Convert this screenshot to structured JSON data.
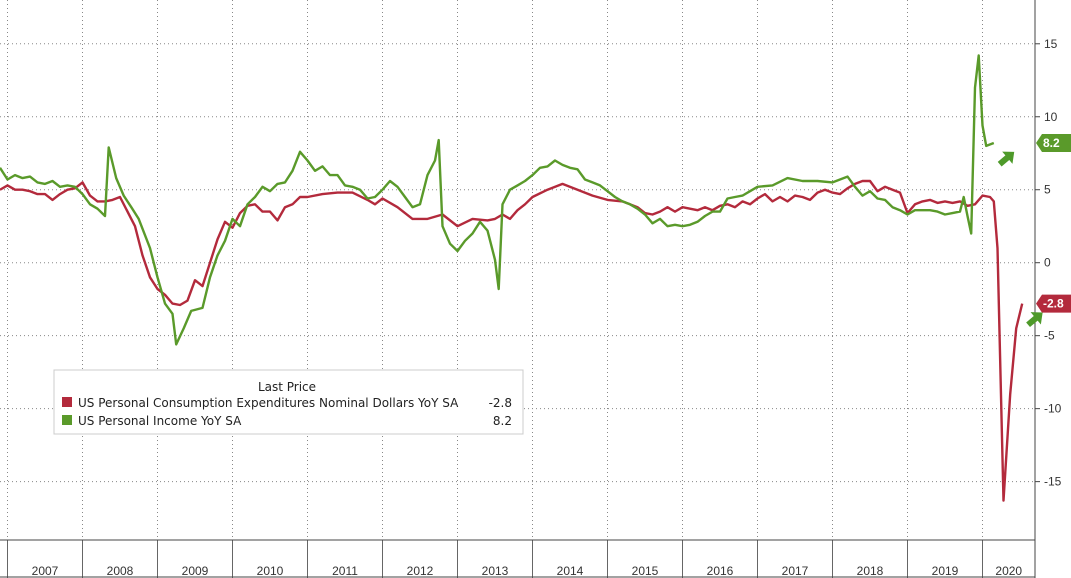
{
  "chart_data": {
    "type": "line",
    "x_range": [
      2006.9,
      2020.7
    ],
    "ylim": [
      -19,
      18
    ],
    "y_ticks": [
      15,
      10,
      5,
      0,
      -5,
      -10,
      -15
    ],
    "y_tick_labels": [
      "15",
      "10",
      "5",
      "0",
      "-5",
      "-10",
      "-15"
    ],
    "x_tick_labels": [
      "2007",
      "2008",
      "2009",
      "2010",
      "2011",
      "2012",
      "2013",
      "2014",
      "2015",
      "2016",
      "2017",
      "2018",
      "2019",
      "2020"
    ],
    "grid": true,
    "legend": {
      "title": "Last Price",
      "placement": "lower-left",
      "entries": [
        {
          "label": "US Personal Consumption Expenditures Nominal Dollars YoY SA",
          "value": "-2.8",
          "color": "#b32a3c"
        },
        {
          "label": "US Personal Income YoY SA",
          "value": "8.2",
          "color": "#5a9a2a"
        }
      ]
    },
    "series": [
      {
        "key": "pce",
        "color": "#b32a3c",
        "last_label": "-2.8",
        "points": [
          [
            2006.9,
            5.0
          ],
          [
            2007.0,
            5.3
          ],
          [
            2007.1,
            5.0
          ],
          [
            2007.2,
            5.0
          ],
          [
            2007.3,
            4.9
          ],
          [
            2007.4,
            4.7
          ],
          [
            2007.5,
            4.7
          ],
          [
            2007.6,
            4.3
          ],
          [
            2007.7,
            4.7
          ],
          [
            2007.8,
            5.0
          ],
          [
            2007.9,
            5.1
          ],
          [
            2008.0,
            5.5
          ],
          [
            2008.1,
            4.6
          ],
          [
            2008.2,
            4.2
          ],
          [
            2008.3,
            4.2
          ],
          [
            2008.4,
            4.3
          ],
          [
            2008.5,
            4.5
          ],
          [
            2008.6,
            3.5
          ],
          [
            2008.7,
            2.5
          ],
          [
            2008.8,
            0.5
          ],
          [
            2008.9,
            -1.0
          ],
          [
            2009.0,
            -1.8
          ],
          [
            2009.1,
            -2.2
          ],
          [
            2009.2,
            -2.8
          ],
          [
            2009.3,
            -2.9
          ],
          [
            2009.4,
            -2.6
          ],
          [
            2009.5,
            -1.2
          ],
          [
            2009.6,
            -1.6
          ],
          [
            2009.7,
            0.0
          ],
          [
            2009.8,
            1.6
          ],
          [
            2009.9,
            2.8
          ],
          [
            2010.0,
            2.4
          ],
          [
            2010.1,
            3.4
          ],
          [
            2010.2,
            3.9
          ],
          [
            2010.3,
            4.0
          ],
          [
            2010.4,
            3.5
          ],
          [
            2010.5,
            3.5
          ],
          [
            2010.6,
            2.9
          ],
          [
            2010.7,
            3.8
          ],
          [
            2010.8,
            4.0
          ],
          [
            2010.9,
            4.5
          ],
          [
            2011.0,
            4.5
          ],
          [
            2011.2,
            4.7
          ],
          [
            2011.4,
            4.8
          ],
          [
            2011.6,
            4.8
          ],
          [
            2011.8,
            4.3
          ],
          [
            2011.9,
            4.0
          ],
          [
            2012.0,
            4.4
          ],
          [
            2012.2,
            3.8
          ],
          [
            2012.4,
            3.0
          ],
          [
            2012.6,
            3.0
          ],
          [
            2012.8,
            3.3
          ],
          [
            2013.0,
            2.5
          ],
          [
            2013.2,
            3.0
          ],
          [
            2013.4,
            2.9
          ],
          [
            2013.5,
            3.0
          ],
          [
            2013.6,
            3.3
          ],
          [
            2013.7,
            3.0
          ],
          [
            2013.8,
            3.6
          ],
          [
            2013.9,
            4.0
          ],
          [
            2014.0,
            4.5
          ],
          [
            2014.2,
            5.0
          ],
          [
            2014.4,
            5.4
          ],
          [
            2014.6,
            5.0
          ],
          [
            2014.8,
            4.6
          ],
          [
            2015.0,
            4.3
          ],
          [
            2015.2,
            4.2
          ],
          [
            2015.4,
            3.8
          ],
          [
            2015.5,
            3.4
          ],
          [
            2015.6,
            3.3
          ],
          [
            2015.7,
            3.5
          ],
          [
            2015.8,
            3.8
          ],
          [
            2015.9,
            3.5
          ],
          [
            2016.0,
            3.8
          ],
          [
            2016.1,
            3.7
          ],
          [
            2016.2,
            3.6
          ],
          [
            2016.3,
            3.8
          ],
          [
            2016.4,
            3.6
          ],
          [
            2016.5,
            3.9
          ],
          [
            2016.6,
            4.0
          ],
          [
            2016.7,
            3.8
          ],
          [
            2016.8,
            4.2
          ],
          [
            2016.9,
            4.0
          ],
          [
            2017.0,
            4.4
          ],
          [
            2017.1,
            4.7
          ],
          [
            2017.2,
            4.2
          ],
          [
            2017.3,
            4.5
          ],
          [
            2017.4,
            4.2
          ],
          [
            2017.5,
            4.6
          ],
          [
            2017.6,
            4.5
          ],
          [
            2017.7,
            4.3
          ],
          [
            2017.8,
            4.8
          ],
          [
            2017.9,
            5.0
          ],
          [
            2018.0,
            4.8
          ],
          [
            2018.1,
            4.7
          ],
          [
            2018.2,
            5.1
          ],
          [
            2018.3,
            5.4
          ],
          [
            2018.4,
            5.6
          ],
          [
            2018.5,
            5.6
          ],
          [
            2018.6,
            4.9
          ],
          [
            2018.7,
            5.2
          ],
          [
            2018.8,
            5.0
          ],
          [
            2018.9,
            4.8
          ],
          [
            2019.0,
            3.4
          ],
          [
            2019.1,
            4.0
          ],
          [
            2019.2,
            4.2
          ],
          [
            2019.3,
            4.3
          ],
          [
            2019.4,
            4.1
          ],
          [
            2019.5,
            4.2
          ],
          [
            2019.6,
            4.1
          ],
          [
            2019.7,
            4.2
          ],
          [
            2019.8,
            3.9
          ],
          [
            2019.9,
            4.0
          ],
          [
            2020.0,
            4.6
          ],
          [
            2020.1,
            4.5
          ],
          [
            2020.15,
            4.2
          ],
          [
            2020.2,
            1.0
          ],
          [
            2020.28,
            -16.3
          ],
          [
            2020.37,
            -9.0
          ],
          [
            2020.45,
            -4.5
          ],
          [
            2020.53,
            -2.8
          ]
        ]
      },
      {
        "key": "income",
        "color": "#5a9a2a",
        "last_label": "8.2",
        "points": [
          [
            2006.9,
            6.5
          ],
          [
            2007.0,
            5.7
          ],
          [
            2007.1,
            6.0
          ],
          [
            2007.2,
            5.8
          ],
          [
            2007.3,
            5.9
          ],
          [
            2007.4,
            5.5
          ],
          [
            2007.5,
            5.4
          ],
          [
            2007.6,
            5.6
          ],
          [
            2007.7,
            5.2
          ],
          [
            2007.8,
            5.3
          ],
          [
            2007.9,
            5.2
          ],
          [
            2008.0,
            4.7
          ],
          [
            2008.1,
            4.0
          ],
          [
            2008.2,
            3.7
          ],
          [
            2008.3,
            3.2
          ],
          [
            2008.35,
            7.9
          ],
          [
            2008.45,
            5.8
          ],
          [
            2008.55,
            4.6
          ],
          [
            2008.65,
            3.8
          ],
          [
            2008.75,
            3.0
          ],
          [
            2008.9,
            1.0
          ],
          [
            2009.0,
            -1.0
          ],
          [
            2009.1,
            -2.8
          ],
          [
            2009.2,
            -3.5
          ],
          [
            2009.25,
            -5.6
          ],
          [
            2009.35,
            -4.5
          ],
          [
            2009.45,
            -3.3
          ],
          [
            2009.6,
            -3.1
          ],
          [
            2009.7,
            -1.0
          ],
          [
            2009.8,
            0.5
          ],
          [
            2009.9,
            1.5
          ],
          [
            2010.0,
            3.0
          ],
          [
            2010.1,
            2.5
          ],
          [
            2010.2,
            4.0
          ],
          [
            2010.3,
            4.5
          ],
          [
            2010.4,
            5.2
          ],
          [
            2010.5,
            4.9
          ],
          [
            2010.6,
            5.4
          ],
          [
            2010.7,
            5.5
          ],
          [
            2010.8,
            6.3
          ],
          [
            2010.9,
            7.6
          ],
          [
            2011.0,
            7.0
          ],
          [
            2011.1,
            6.3
          ],
          [
            2011.2,
            6.6
          ],
          [
            2011.3,
            6.0
          ],
          [
            2011.4,
            6.0
          ],
          [
            2011.5,
            5.3
          ],
          [
            2011.6,
            5.2
          ],
          [
            2011.7,
            5.0
          ],
          [
            2011.8,
            4.4
          ],
          [
            2011.9,
            4.5
          ],
          [
            2012.0,
            5.0
          ],
          [
            2012.1,
            5.6
          ],
          [
            2012.2,
            5.2
          ],
          [
            2012.3,
            4.5
          ],
          [
            2012.4,
            3.8
          ],
          [
            2012.5,
            4.0
          ],
          [
            2012.6,
            6.0
          ],
          [
            2012.7,
            7.0
          ],
          [
            2012.75,
            8.4
          ],
          [
            2012.8,
            2.5
          ],
          [
            2012.9,
            1.3
          ],
          [
            2013.0,
            0.8
          ],
          [
            2013.1,
            1.5
          ],
          [
            2013.2,
            2.0
          ],
          [
            2013.3,
            2.8
          ],
          [
            2013.4,
            2.2
          ],
          [
            2013.5,
            0.2
          ],
          [
            2013.55,
            -1.8
          ],
          [
            2013.6,
            4.0
          ],
          [
            2013.7,
            5.0
          ],
          [
            2013.8,
            5.3
          ],
          [
            2013.9,
            5.6
          ],
          [
            2014.0,
            6.0
          ],
          [
            2014.1,
            6.5
          ],
          [
            2014.2,
            6.6
          ],
          [
            2014.3,
            7.0
          ],
          [
            2014.4,
            6.7
          ],
          [
            2014.5,
            6.5
          ],
          [
            2014.6,
            6.4
          ],
          [
            2014.7,
            5.7
          ],
          [
            2014.8,
            5.5
          ],
          [
            2014.9,
            5.3
          ],
          [
            2015.0,
            4.9
          ],
          [
            2015.1,
            4.5
          ],
          [
            2015.2,
            4.2
          ],
          [
            2015.3,
            4.0
          ],
          [
            2015.4,
            3.7
          ],
          [
            2015.5,
            3.3
          ],
          [
            2015.6,
            2.7
          ],
          [
            2015.7,
            3.0
          ],
          [
            2015.8,
            2.5
          ],
          [
            2015.9,
            2.6
          ],
          [
            2016.0,
            2.5
          ],
          [
            2016.1,
            2.6
          ],
          [
            2016.2,
            2.8
          ],
          [
            2016.3,
            3.2
          ],
          [
            2016.4,
            3.5
          ],
          [
            2016.5,
            3.5
          ],
          [
            2016.6,
            4.4
          ],
          [
            2016.7,
            4.5
          ],
          [
            2016.8,
            4.6
          ],
          [
            2016.9,
            4.9
          ],
          [
            2017.0,
            5.2
          ],
          [
            2017.2,
            5.3
          ],
          [
            2017.4,
            5.8
          ],
          [
            2017.6,
            5.6
          ],
          [
            2017.8,
            5.6
          ],
          [
            2018.0,
            5.5
          ],
          [
            2018.1,
            5.7
          ],
          [
            2018.2,
            5.9
          ],
          [
            2018.3,
            5.2
          ],
          [
            2018.4,
            4.6
          ],
          [
            2018.5,
            4.9
          ],
          [
            2018.6,
            4.4
          ],
          [
            2018.7,
            4.3
          ],
          [
            2018.8,
            3.8
          ],
          [
            2018.9,
            3.6
          ],
          [
            2019.0,
            3.3
          ],
          [
            2019.1,
            3.6
          ],
          [
            2019.2,
            3.6
          ],
          [
            2019.3,
            3.6
          ],
          [
            2019.4,
            3.5
          ],
          [
            2019.5,
            3.3
          ],
          [
            2019.6,
            3.4
          ],
          [
            2019.7,
            3.5
          ],
          [
            2019.75,
            4.5
          ],
          [
            2019.8,
            3.2
          ],
          [
            2019.85,
            2.0
          ],
          [
            2019.9,
            12.0
          ],
          [
            2019.95,
            14.2
          ],
          [
            2020.0,
            9.4
          ],
          [
            2020.05,
            8.0
          ],
          [
            2020.15,
            8.2
          ]
        ]
      }
    ]
  }
}
